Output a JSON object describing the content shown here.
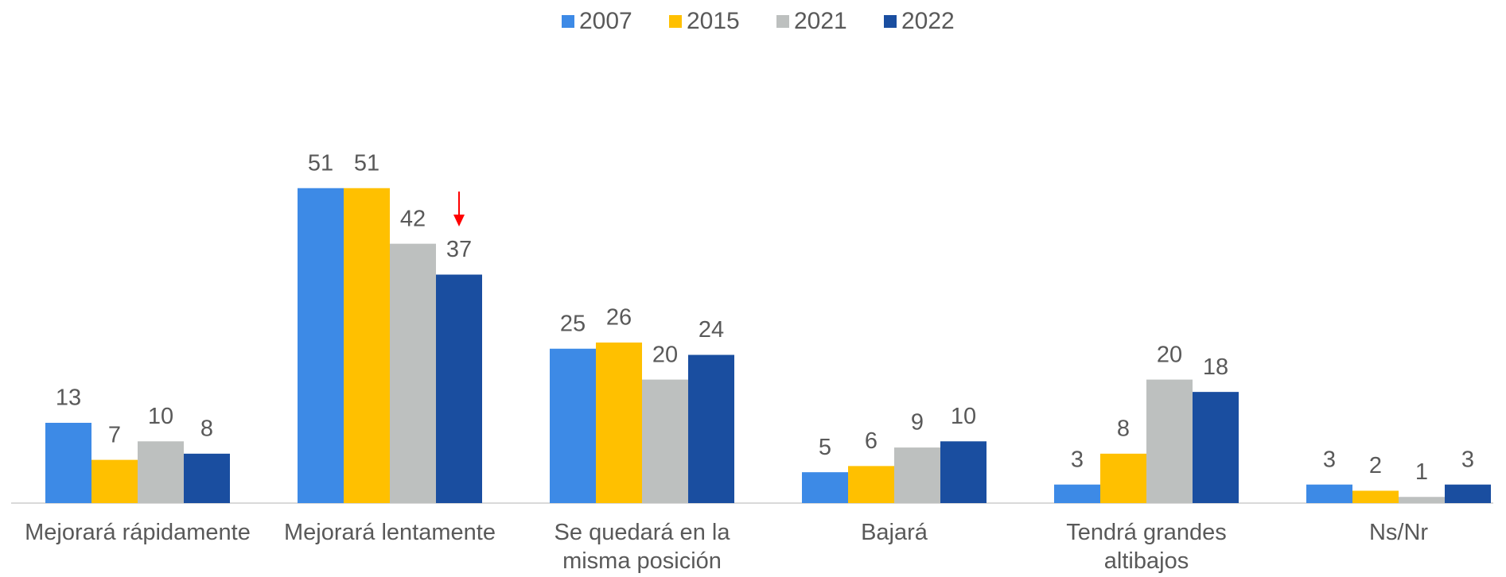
{
  "chart_data": {
    "type": "bar",
    "categories": [
      "Mejorará rápidamente",
      "Mejorará lentamente",
      "Se quedará en la misma posición",
      "Bajará",
      "Tendrá grandes altibajos",
      "Ns/Nr"
    ],
    "series": [
      {
        "name": "2007",
        "color": "#3d8ae6",
        "values": [
          13,
          51,
          25,
          5,
          3,
          3
        ]
      },
      {
        "name": "2015",
        "color": "#ffc000",
        "values": [
          7,
          51,
          26,
          6,
          8,
          2
        ]
      },
      {
        "name": "2021",
        "color": "#bdc0bf",
        "values": [
          10,
          42,
          20,
          9,
          20,
          1
        ]
      },
      {
        "name": "2022",
        "color": "#1a4ea0",
        "values": [
          8,
          37,
          24,
          10,
          18,
          3
        ]
      }
    ],
    "legend": "top"
  }
}
